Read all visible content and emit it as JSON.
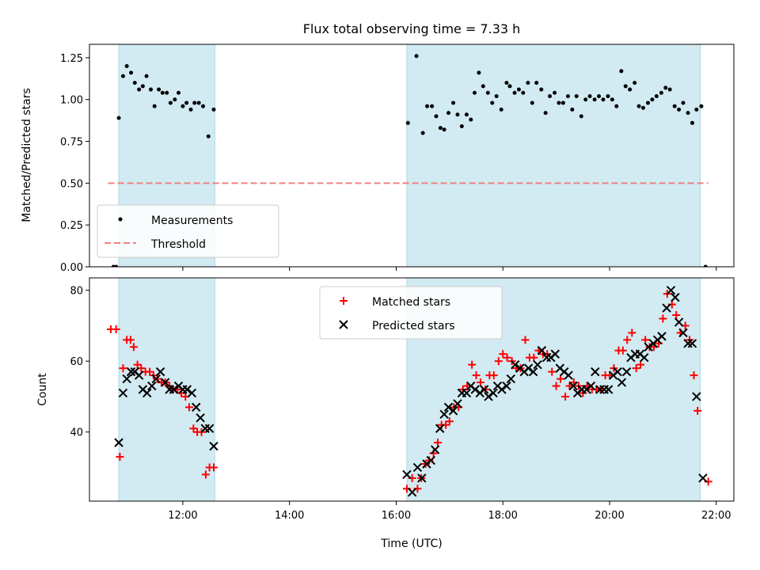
{
  "chart_data": {
    "title": "Flux total observing time = 7.33 h",
    "xlabel": "Time (UTC)",
    "xlim": [
      10.25,
      22.33
    ],
    "xticks": [
      {
        "value": 12,
        "label": "12:00"
      },
      {
        "value": 14,
        "label": "14:00"
      },
      {
        "value": 16,
        "label": "16:00"
      },
      {
        "value": 18,
        "label": "18:00"
      },
      {
        "value": 20,
        "label": "20:00"
      },
      {
        "value": 22,
        "label": "22:00"
      }
    ],
    "shaded_intervals": [
      [
        10.8,
        12.6
      ],
      [
        16.2,
        21.7
      ]
    ],
    "shade_color": "#add8e6",
    "panels": [
      {
        "type": "scatter",
        "ylabel": "Matched/Predicted stars",
        "ylim": [
          0,
          1.33
        ],
        "yticks": [
          "0.00",
          "0.25",
          "0.50",
          "0.75",
          "1.00",
          "1.25"
        ],
        "legend_position": "lower-left",
        "threshold": {
          "name": "Threshold",
          "value": 0.5,
          "x_range": [
            10.6,
            21.85
          ],
          "color": "#f08080"
        },
        "series": [
          {
            "name": "Measurements",
            "color": "#000000",
            "x": [
              10.7,
              10.75,
              10.8,
              10.88,
              10.95,
              11.03,
              11.1,
              11.18,
              11.25,
              11.32,
              11.4,
              11.47,
              11.55,
              11.62,
              11.7,
              11.77,
              11.85,
              11.92,
              12.0,
              12.07,
              12.15,
              12.22,
              12.3,
              12.38,
              12.48,
              12.58,
              16.22,
              16.38,
              16.5,
              16.58,
              16.67,
              16.75,
              16.83,
              16.9,
              16.98,
              17.07,
              17.15,
              17.23,
              17.32,
              17.4,
              17.47,
              17.55,
              17.63,
              17.72,
              17.8,
              17.88,
              17.97,
              18.07,
              18.13,
              18.22,
              18.3,
              18.38,
              18.47,
              18.55,
              18.63,
              18.72,
              18.8,
              18.88,
              18.97,
              19.05,
              19.13,
              19.22,
              19.3,
              19.38,
              19.47,
              19.55,
              19.63,
              19.72,
              19.8,
              19.88,
              19.97,
              20.05,
              20.13,
              20.22,
              20.3,
              20.38,
              20.47,
              20.55,
              20.63,
              20.72,
              20.8,
              20.88,
              20.97,
              21.05,
              21.13,
              21.22,
              21.3,
              21.38,
              21.47,
              21.55,
              21.63,
              21.72,
              21.8
            ],
            "y": [
              0.0,
              0.0,
              0.89,
              1.14,
              1.2,
              1.16,
              1.1,
              1.06,
              1.08,
              1.14,
              1.06,
              0.96,
              1.06,
              1.04,
              1.04,
              0.98,
              1.0,
              1.04,
              0.96,
              0.98,
              0.94,
              0.98,
              0.98,
              0.96,
              0.78,
              0.94,
              0.86,
              1.26,
              0.8,
              0.96,
              0.96,
              0.9,
              0.83,
              0.82,
              0.92,
              0.98,
              0.91,
              0.84,
              0.91,
              0.88,
              1.04,
              1.16,
              1.08,
              1.04,
              0.98,
              1.02,
              0.94,
              1.1,
              1.08,
              1.04,
              1.06,
              1.04,
              1.1,
              0.98,
              1.1,
              1.06,
              0.92,
              1.02,
              1.04,
              0.98,
              0.98,
              1.02,
              0.94,
              1.02,
              0.9,
              1.0,
              1.02,
              1.0,
              1.02,
              1.0,
              1.02,
              1.0,
              0.96,
              1.17,
              1.08,
              1.06,
              1.1,
              0.96,
              0.95,
              0.98,
              1.0,
              1.02,
              1.04,
              1.07,
              1.06,
              0.96,
              0.94,
              0.98,
              0.92,
              0.86,
              0.94,
              0.96,
              0.0
            ]
          }
        ]
      },
      {
        "type": "scatter",
        "ylabel": "Count",
        "ylim": [
          20.5,
          83.5
        ],
        "yticks": [
          "40",
          "60",
          "80"
        ],
        "legend_position": "upper-center",
        "series": [
          {
            "name": "Matched stars",
            "marker": "+",
            "color": "#ff0000",
            "x": [
              10.65,
              10.75,
              10.82,
              10.88,
              10.95,
              11.02,
              11.08,
              11.15,
              11.22,
              11.3,
              11.38,
              11.45,
              11.52,
              11.6,
              11.67,
              11.75,
              11.82,
              11.9,
              11.97,
              12.05,
              12.12,
              12.2,
              12.27,
              12.35,
              12.43,
              12.5,
              12.58,
              16.2,
              16.3,
              16.4,
              16.47,
              16.55,
              16.62,
              16.7,
              16.78,
              16.85,
              16.93,
              17.0,
              17.08,
              17.17,
              17.25,
              17.33,
              17.42,
              17.5,
              17.58,
              17.67,
              17.75,
              17.83,
              17.92,
              18.0,
              18.08,
              18.17,
              18.25,
              18.33,
              18.42,
              18.5,
              18.58,
              18.67,
              18.75,
              18.83,
              18.92,
              19.0,
              19.08,
              19.17,
              19.25,
              19.33,
              19.42,
              19.5,
              19.58,
              19.67,
              19.75,
              19.83,
              19.92,
              20.0,
              20.08,
              20.17,
              20.25,
              20.33,
              20.42,
              20.5,
              20.58,
              20.67,
              20.75,
              20.83,
              20.92,
              21.0,
              21.08,
              21.17,
              21.25,
              21.33,
              21.42,
              21.5,
              21.58,
              21.65,
              21.85
            ],
            "y": [
              69,
              69,
              33,
              58,
              66,
              66,
              64,
              59,
              58,
              57,
              57,
              56,
              55,
              54,
              54,
              53,
              52,
              52,
              51,
              50,
              47,
              41,
              40,
              40,
              28,
              30,
              30,
              24,
              27,
              24,
              27,
              31,
              32,
              34,
              37,
              42,
              42,
              43,
              47,
              47,
              52,
              53,
              59,
              56,
              54,
              52,
              56,
              56,
              60,
              62,
              61,
              60,
              58,
              58,
              66,
              61,
              61,
              63,
              62,
              62,
              57,
              53,
              55,
              50,
              53,
              54,
              53,
              51,
              53,
              52,
              52,
              52,
              56,
              56,
              58,
              63,
              63,
              66,
              68,
              58,
              59,
              66,
              64,
              64,
              65,
              72,
              79,
              76,
              73,
              68,
              70,
              66,
              56,
              46,
              26
            ]
          },
          {
            "name": "Predicted stars",
            "marker": "x",
            "color": "#000000",
            "x": [
              10.8,
              10.88,
              10.95,
              11.03,
              11.1,
              11.18,
              11.25,
              11.33,
              11.42,
              11.5,
              11.58,
              11.67,
              11.75,
              11.83,
              11.92,
              12.0,
              12.08,
              12.17,
              12.25,
              12.33,
              12.42,
              12.5,
              12.58,
              16.2,
              16.3,
              16.4,
              16.48,
              16.57,
              16.65,
              16.73,
              16.82,
              16.9,
              16.98,
              17.07,
              17.15,
              17.23,
              17.32,
              17.4,
              17.48,
              17.57,
              17.65,
              17.73,
              17.82,
              17.9,
              17.98,
              18.07,
              18.15,
              18.23,
              18.32,
              18.4,
              18.48,
              18.57,
              18.65,
              18.73,
              18.82,
              18.9,
              18.98,
              19.07,
              19.15,
              19.23,
              19.32,
              19.4,
              19.48,
              19.57,
              19.65,
              19.73,
              19.82,
              19.9,
              19.98,
              20.07,
              20.15,
              20.23,
              20.32,
              20.4,
              20.48,
              20.57,
              20.65,
              20.73,
              20.82,
              20.9,
              20.98,
              21.07,
              21.15,
              21.23,
              21.3,
              21.38,
              21.47,
              21.55,
              21.63,
              21.75
            ],
            "y": [
              37,
              51,
              55,
              57,
              57,
              56,
              52,
              51,
              53,
              55,
              57,
              54,
              52,
              52,
              53,
              52,
              52,
              51,
              47,
              44,
              41,
              41,
              36,
              28,
              23,
              30,
              27,
              31,
              32,
              35,
              41,
              45,
              47,
              46,
              48,
              51,
              51,
              53,
              52,
              51,
              52,
              50,
              51,
              53,
              52,
              53,
              55,
              59,
              58,
              57,
              58,
              57,
              59,
              63,
              61,
              61,
              62,
              58,
              57,
              56,
              53,
              51,
              52,
              52,
              53,
              57,
              52,
              52,
              52,
              56,
              57,
              54,
              57,
              61,
              62,
              62,
              61,
              64,
              65,
              66,
              67,
              75,
              80,
              78,
              71,
              68,
              65,
              65,
              50,
              27
            ]
          }
        ]
      }
    ]
  }
}
